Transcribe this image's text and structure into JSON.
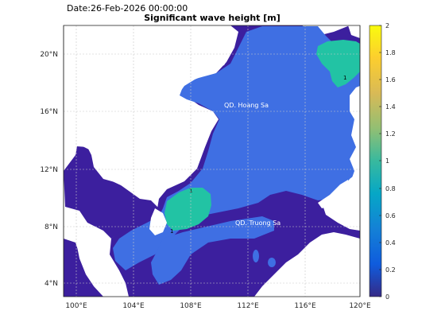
{
  "header": {
    "date_label": "Date:26-Feb-2026 00:00:00",
    "title": "Significant wave height [m]"
  },
  "map": {
    "lon_ticks": [
      "100°E",
      "104°E",
      "108°E",
      "112°E",
      "116°E",
      "120°E"
    ],
    "lat_ticks": [
      "20°N",
      "16°N",
      "12°N",
      "8°N",
      "4°N"
    ],
    "place_labels": [
      "QD. Hoang Sa",
      "QD. Truong Sa"
    ],
    "contour_labels": [
      "1",
      "1",
      "1"
    ],
    "colors": {
      "land": "#ffffff",
      "sea_low": "#3c1f9e",
      "sea_mid": "#3f6fe3",
      "sea_high": "#22c3a4"
    }
  },
  "colorbar": {
    "ticks": [
      "2",
      "1.8",
      "1.6",
      "1.4",
      "1.2",
      "1",
      "0.8",
      "0.6",
      "0.4",
      "0.2",
      "0"
    ],
    "min": 0,
    "max": 2
  }
}
